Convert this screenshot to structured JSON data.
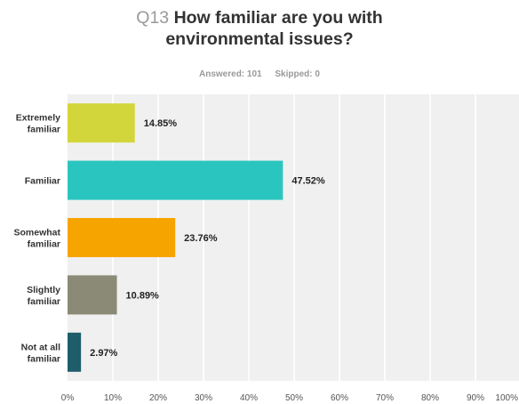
{
  "title": {
    "number": "Q13",
    "line1": "How familiar are you with",
    "line2": "environmental issues?"
  },
  "meta": {
    "answered": "Answered: 101",
    "skipped": "Skipped: 0"
  },
  "chart_data": {
    "type": "bar",
    "orientation": "horizontal",
    "categories": [
      [
        "Extremely",
        "familiar"
      ],
      [
        "Familiar"
      ],
      [
        "Somewhat",
        "familiar"
      ],
      [
        "Slightly",
        "familiar"
      ],
      [
        "Not at all",
        "familiar"
      ]
    ],
    "values": [
      14.85,
      47.52,
      23.76,
      10.89,
      2.97
    ],
    "value_labels": [
      "14.85%",
      "47.52%",
      "23.76%",
      "10.89%",
      "2.97%"
    ],
    "colors": [
      "#d3d63a",
      "#2bc5c0",
      "#f6a500",
      "#8a8a76",
      "#1e5e6a"
    ],
    "xlim": [
      0,
      100
    ],
    "xticks": [
      "0%",
      "10%",
      "20%",
      "30%",
      "40%",
      "50%",
      "60%",
      "70%",
      "80%",
      "90%",
      "100%"
    ],
    "grid": true,
    "plot_background": "#f0f0f0"
  }
}
